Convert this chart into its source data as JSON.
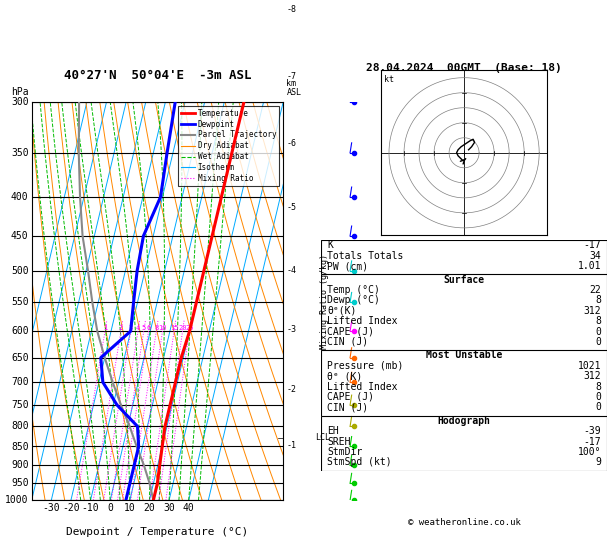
{
  "title_left": "40°27'N  50°04'E  -3m ASL",
  "title_right": "28.04.2024  00GMT  (Base: 18)",
  "xlabel": "Dewpoint / Temperature (°C)",
  "pressure_levels": [
    300,
    350,
    400,
    450,
    500,
    550,
    600,
    650,
    700,
    750,
    800,
    850,
    900,
    950,
    1000
  ],
  "temp_T": [
    22,
    22,
    21,
    20,
    19,
    19,
    19,
    19,
    20,
    20,
    20,
    20,
    20,
    20,
    20
  ],
  "temp_p": [
    1000,
    950,
    900,
    850,
    800,
    750,
    700,
    650,
    600,
    550,
    500,
    450,
    400,
    350,
    300
  ],
  "dewp_T": [
    8,
    8,
    8,
    8,
    5,
    -8,
    -18,
    -22,
    -10,
    -12,
    -14,
    -15,
    -11,
    -13,
    -15
  ],
  "dewp_p": [
    1000,
    950,
    900,
    850,
    800,
    750,
    700,
    650,
    600,
    550,
    500,
    450,
    400,
    350,
    300
  ],
  "parcel_T": [
    22,
    18,
    13,
    7,
    1,
    -6,
    -13,
    -20,
    -27,
    -33,
    -39,
    -46,
    -52,
    -58,
    -64
  ],
  "parcel_p": [
    1000,
    950,
    900,
    850,
    800,
    750,
    700,
    650,
    600,
    550,
    500,
    450,
    400,
    350,
    300
  ],
  "temp_color": "#ff0000",
  "dewp_color": "#0000ff",
  "parcel_color": "#888888",
  "dry_adiabat_color": "#ff8800",
  "wet_adiabat_color": "#00bb00",
  "isotherm_color": "#00aaff",
  "mixing_ratio_color": "#ff00ff",
  "bg_color": "#ffffff",
  "xlim": [
    -40,
    40
  ],
  "skew": 1.0,
  "p_min": 300,
  "p_max": 1000,
  "km_labels": [
    1,
    2,
    3,
    4,
    5,
    6,
    7,
    8
  ],
  "km_pressures": [
    848,
    715,
    596,
    500,
    413,
    340,
    278,
    227
  ],
  "lcl_pressure": 828,
  "mr_values": [
    1,
    2,
    3,
    4,
    5,
    6,
    8,
    10,
    15,
    20,
    25
  ],
  "isotherm_temps": [
    -60,
    -50,
    -40,
    -30,
    -20,
    -10,
    0,
    10,
    20,
    30,
    40,
    50
  ],
  "dry_adiabat_thetas": [
    230,
    240,
    250,
    260,
    270,
    280,
    290,
    300,
    310,
    320,
    330,
    340,
    350,
    360,
    370,
    380,
    390,
    400,
    410,
    420,
    430
  ],
  "wet_adiabat_T0s": [
    -15,
    -10,
    -5,
    0,
    5,
    10,
    15,
    20,
    25,
    30,
    35,
    40,
    45
  ],
  "xtick_temps": [
    -30,
    -20,
    -10,
    0,
    10,
    20,
    30,
    40
  ],
  "legend_items": [
    {
      "label": "Temperature",
      "color": "#ff0000",
      "lw": 2,
      "ls": "-"
    },
    {
      "label": "Dewpoint",
      "color": "#0000ff",
      "lw": 2,
      "ls": "-"
    },
    {
      "label": "Parcel Trajectory",
      "color": "#888888",
      "lw": 1.5,
      "ls": "-"
    },
    {
      "label": "Dry Adiabat",
      "color": "#ff8800",
      "lw": 0.8,
      "ls": "-"
    },
    {
      "label": "Wet Adiabat",
      "color": "#00bb00",
      "lw": 0.8,
      "ls": "--"
    },
    {
      "label": "Isotherm",
      "color": "#00aaff",
      "lw": 0.8,
      "ls": "-"
    },
    {
      "label": "Mixing Ratio",
      "color": "#ff00ff",
      "lw": 0.8,
      "ls": ":"
    }
  ],
  "stats_K": "-17",
  "stats_TT": "34",
  "stats_PW": "1.01",
  "stats_surf_temp": "22",
  "stats_surf_dewp": "8",
  "stats_surf_theta": "312",
  "stats_surf_li": "8",
  "stats_surf_cape": "0",
  "stats_surf_cin": "0",
  "stats_mu_pres": "1021",
  "stats_mu_theta": "312",
  "stats_mu_li": "8",
  "stats_mu_cape": "0",
  "stats_mu_cin": "0",
  "stats_eh": "-39",
  "stats_sreh": "-17",
  "stats_stmdir": "100°",
  "stats_stmspd": "9",
  "wind_strip_colors": [
    "#00cc00",
    "#00cc00",
    "#00cc00",
    "#00cc00",
    "#aaaa00",
    "#aaaa00",
    "#ff6600",
    "#ff6600",
    "#ff00ff",
    "#00cccc",
    "#00cccc",
    "#0000ff",
    "#0000ff",
    "#0000ff",
    "#0000ff"
  ],
  "wind_strip_pressures": [
    1000,
    950,
    900,
    850,
    800,
    750,
    700,
    650,
    600,
    550,
    500,
    450,
    400,
    350,
    300
  ],
  "hodo_u": [
    3,
    5,
    7,
    6,
    4,
    1,
    -2,
    -4,
    -5,
    -4,
    -3,
    -2,
    -1,
    0,
    1
  ],
  "hodo_v": [
    2,
    4,
    7,
    9,
    8,
    6,
    4,
    2,
    0,
    -2,
    -3,
    -4,
    -5,
    -5,
    -4
  ],
  "hodo_circles": [
    10,
    20,
    30,
    40,
    50
  ]
}
